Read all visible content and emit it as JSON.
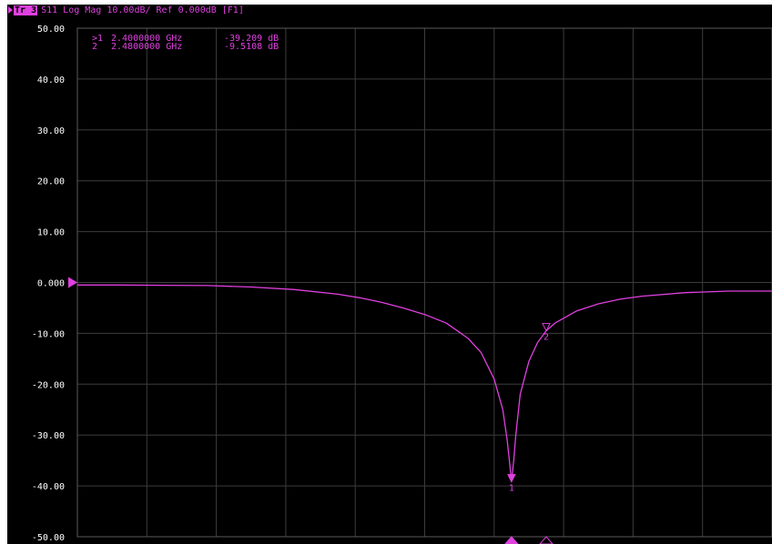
{
  "header": {
    "trace_label": "Tr 3",
    "title": "S11 Log Mag 10.00dB/ Ref 0.000dB [F1]"
  },
  "markers": [
    {
      "label": ">1",
      "freq": "2.4000000 GHz",
      "value": "-39.209 dB"
    },
    {
      "label": "2",
      "freq": "2.4800000 GHz",
      "value": "-9.5108 dB"
    }
  ],
  "colors": {
    "trace": "#e040e0",
    "grid": "#3c3c3c",
    "background": "#000000",
    "axis_text": "#ffffff"
  },
  "chart_data": {
    "type": "line",
    "title": "S11 Log Mag 10.00dB/ Ref 0.000dB [F1]",
    "xlabel": "",
    "ylabel": "",
    "ylim": [
      -50,
      50
    ],
    "xlim": [
      1.4,
      3.0
    ],
    "x_unit": "GHz",
    "y_ticks": [
      "50.00",
      "40.00",
      "30.00",
      "20.00",
      "10.00",
      "0.000",
      "-10.00",
      "-20.00",
      "-30.00",
      "-40.00",
      "-50.00"
    ],
    "reference_level": 0,
    "grid": true,
    "series": [
      {
        "x": [
          1.4,
          1.5,
          1.6,
          1.7,
          1.8,
          1.9,
          2.0,
          2.05,
          2.1,
          2.15,
          2.2,
          2.25,
          2.3,
          2.33,
          2.36,
          2.38,
          2.39,
          2.395,
          2.4,
          2.405,
          2.41,
          2.42,
          2.44,
          2.46,
          2.48,
          2.5,
          2.55,
          2.6,
          2.65,
          2.7,
          2.8,
          2.9,
          3.0
        ],
        "y": [
          -0.5,
          -0.5,
          -0.55,
          -0.6,
          -0.9,
          -1.4,
          -2.3,
          -3.0,
          -3.9,
          -5.0,
          -6.3,
          -8.0,
          -11.0,
          -13.8,
          -19.0,
          -25.0,
          -31.0,
          -35.0,
          -39.2,
          -35.0,
          -30.0,
          -22.0,
          -15.5,
          -11.8,
          -9.5,
          -8.0,
          -5.6,
          -4.2,
          -3.3,
          -2.7,
          -2.0,
          -1.7,
          -1.7
        ]
      }
    ],
    "marker_points": [
      {
        "label": "1",
        "x": 2.4,
        "y": -39.209
      },
      {
        "label": "2",
        "x": 2.48,
        "y": -9.5108
      }
    ]
  }
}
